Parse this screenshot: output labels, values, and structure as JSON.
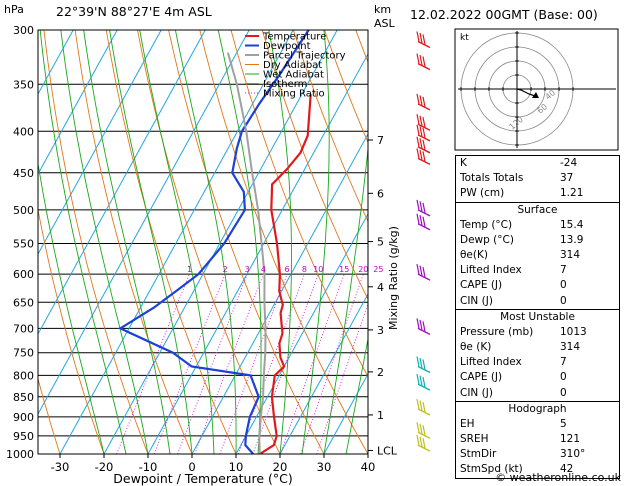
{
  "header": {
    "hpa_unit": "hPa",
    "location": "22°39'N  88°27'E  4m  ASL",
    "km_unit": "km",
    "asl_unit": "ASL",
    "datetime": "12.02.2022  00GMT  (Base: 00)"
  },
  "chart_data": {
    "type": "line",
    "xlabel": "Dewpoint / Temperature (°C)",
    "ylabel": "hPa",
    "xlim": [
      -35,
      40
    ],
    "ylim": [
      1000,
      300
    ],
    "pressure_ticks": [
      300,
      350,
      400,
      450,
      500,
      550,
      600,
      650,
      700,
      750,
      800,
      850,
      900,
      950,
      1000
    ],
    "temp_ticks": [
      -30,
      -20,
      -10,
      0,
      10,
      20,
      30,
      40
    ],
    "km_ticks": [
      {
        "label": "7",
        "p": 410
      },
      {
        "label": "6",
        "p": 477
      },
      {
        "label": "5",
        "p": 547
      },
      {
        "label": "4",
        "p": 622
      },
      {
        "label": "3",
        "p": 703
      },
      {
        "label": "2",
        "p": 792
      },
      {
        "label": "1",
        "p": 895
      },
      {
        "label": "LCL",
        "p": 990
      }
    ],
    "mixing_ratio_label": "Mixing Ratio (g/kg)",
    "mixing_ratio_labels": [
      "1",
      "2",
      "3",
      "4",
      "6",
      "8",
      "10",
      "15",
      "20",
      "25"
    ],
    "legend": [
      "Temperature",
      "Dewpoint",
      "Parcel Trajectory",
      "Dry Adiabat",
      "Wet Adiabat",
      "Isotherm",
      "Mixing Ratio"
    ],
    "series": [
      {
        "name": "Temperature",
        "color": "#e0191d",
        "points": [
          [
            15.4,
            1000
          ],
          [
            17.5,
            975
          ],
          [
            17,
            950
          ],
          [
            14,
            900
          ],
          [
            11,
            850
          ],
          [
            9,
            800
          ],
          [
            10,
            780
          ],
          [
            8,
            760
          ],
          [
            6,
            730
          ],
          [
            5.5,
            710
          ],
          [
            4,
            690
          ],
          [
            2.5,
            670
          ],
          [
            2,
            655
          ],
          [
            -0.5,
            630
          ],
          [
            -2.5,
            600
          ],
          [
            -7,
            550
          ],
          [
            -12.5,
            500
          ],
          [
            -15.5,
            465
          ],
          [
            -14,
            445
          ],
          [
            -13,
            425
          ],
          [
            -13.5,
            405
          ],
          [
            -18,
            360
          ]
        ]
      },
      {
        "name": "Dewpoint",
        "color": "#1c41d6",
        "points": [
          [
            13.9,
            1000
          ],
          [
            11,
            975
          ],
          [
            10,
            950
          ],
          [
            8.5,
            900
          ],
          [
            8,
            850
          ],
          [
            3.5,
            800
          ],
          [
            -11,
            780
          ],
          [
            -17,
            750
          ],
          [
            -32,
            700
          ],
          [
            -27,
            660
          ],
          [
            -24,
            630
          ],
          [
            -21,
            600
          ],
          [
            -19,
            550
          ],
          [
            -18.5,
            500
          ],
          [
            -21,
            475
          ],
          [
            -26,
            450
          ],
          [
            -28,
            420
          ],
          [
            -29,
            400
          ],
          [
            -28.5,
            370
          ],
          [
            -27.5,
            340
          ],
          [
            -26.5,
            300
          ]
        ]
      },
      {
        "name": "Parcel Trajectory",
        "color": "#a0a0a0",
        "points": [
          [
            15.4,
            1000
          ],
          [
            13.5,
            960
          ],
          [
            11,
            900
          ],
          [
            9,
            850
          ],
          [
            6.5,
            800
          ],
          [
            4,
            750
          ],
          [
            1,
            700
          ],
          [
            -2.5,
            650
          ],
          [
            -6,
            600
          ],
          [
            -10.5,
            550
          ],
          [
            -15.5,
            500
          ],
          [
            -21.5,
            450
          ],
          [
            -28,
            400
          ],
          [
            -36,
            350
          ],
          [
            -42,
            320
          ]
        ]
      }
    ]
  },
  "hodograph": {
    "unit": "kt",
    "ring_labels": [
      "40",
      "60",
      "120"
    ]
  },
  "indices": [
    {
      "label": "K",
      "value": "-24"
    },
    {
      "label": "Totals Totals",
      "value": "37"
    },
    {
      "label": "PW (cm)",
      "value": "1.21"
    }
  ],
  "surface": {
    "title": "Surface",
    "rows": [
      {
        "label": "Temp (°C)",
        "value": "15.4"
      },
      {
        "label": "Dewp (°C)",
        "value": "13.9"
      },
      {
        "label": "θe(K)",
        "value": "314"
      },
      {
        "label": "Lifted Index",
        "value": "7"
      },
      {
        "label": "CAPE (J)",
        "value": "0"
      },
      {
        "label": "CIN (J)",
        "value": "0"
      }
    ]
  },
  "most_unstable": {
    "title": "Most Unstable",
    "rows": [
      {
        "label": "Pressure (mb)",
        "value": "1013"
      },
      {
        "label": "θe (K)",
        "value": "314"
      },
      {
        "label": "Lifted Index",
        "value": "7"
      },
      {
        "label": "CAPE (J)",
        "value": "0"
      },
      {
        "label": "CIN (J)",
        "value": "0"
      }
    ]
  },
  "hodograph_table": {
    "title": "Hodograph",
    "rows": [
      {
        "label": "EH",
        "value": "5"
      },
      {
        "label": "SREH",
        "value": "121"
      },
      {
        "label": "StmDir",
        "value": "310°"
      },
      {
        "label": "StmSpd (kt)",
        "value": "42"
      }
    ]
  },
  "footer": "© weatheronline.co.uk"
}
